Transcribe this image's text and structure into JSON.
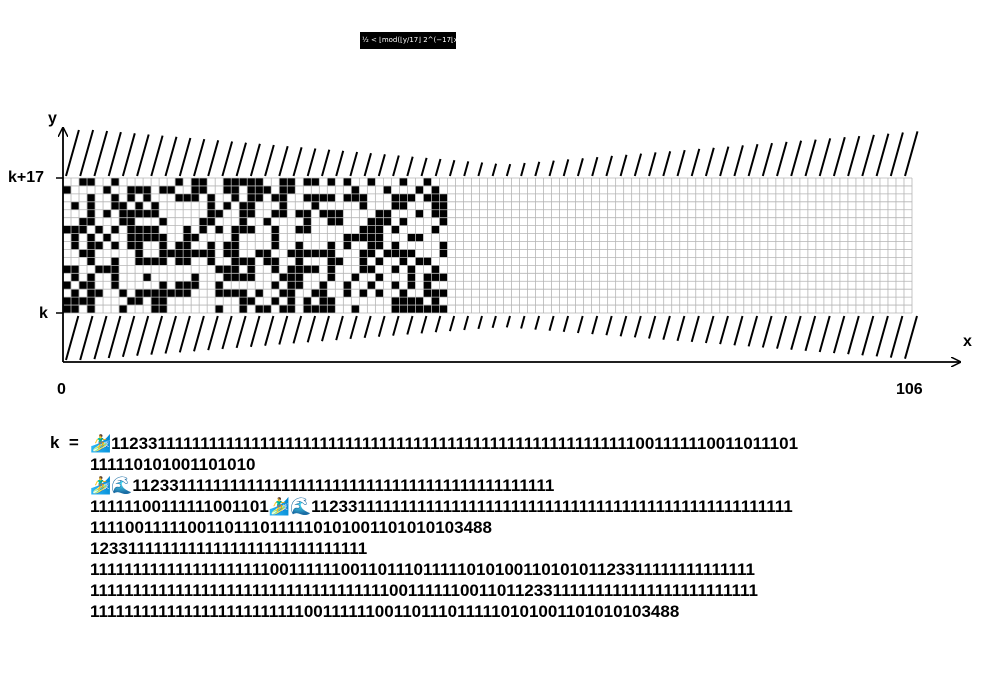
{
  "formula": {
    "text": "½ < ⌊mod(⌊y/17⌋ 2^(−17⌊x⌋−mod(⌊y⌋,17)), 2)⌋"
  },
  "axes": {
    "y_label": "y",
    "x_label": "x",
    "y_top_label": "k+17",
    "y_bottom_label": "k",
    "x_min_label": "0",
    "x_max_label": "106"
  },
  "grid": {
    "columns": 106,
    "rows": 17,
    "filled_columns": 48
  },
  "k_label": "k  =",
  "k_lines": [
    "🏄‍♂️1123311111111111111111111111111111111111111111111111111111111001111110011011101",
    "111110101001101010",
    "🏄‍♂️🌊1123311111111111111111111111111111111111111111111",
    "11111100111111001101🏄‍♂️🌊11233111111111111111111111111111111111111111111111111111",
    "11110011111001101110111110101001101010103488",
    "12331111111111111111111111111111",
    "111111111111111111111001111110011011101111101010011010101123311111111111111",
    "11111111111111111111111111111111111001111110011011233111111111111111111111111",
    "111111111111111111111111100111111001101110111110101001101010103488"
  ]
}
